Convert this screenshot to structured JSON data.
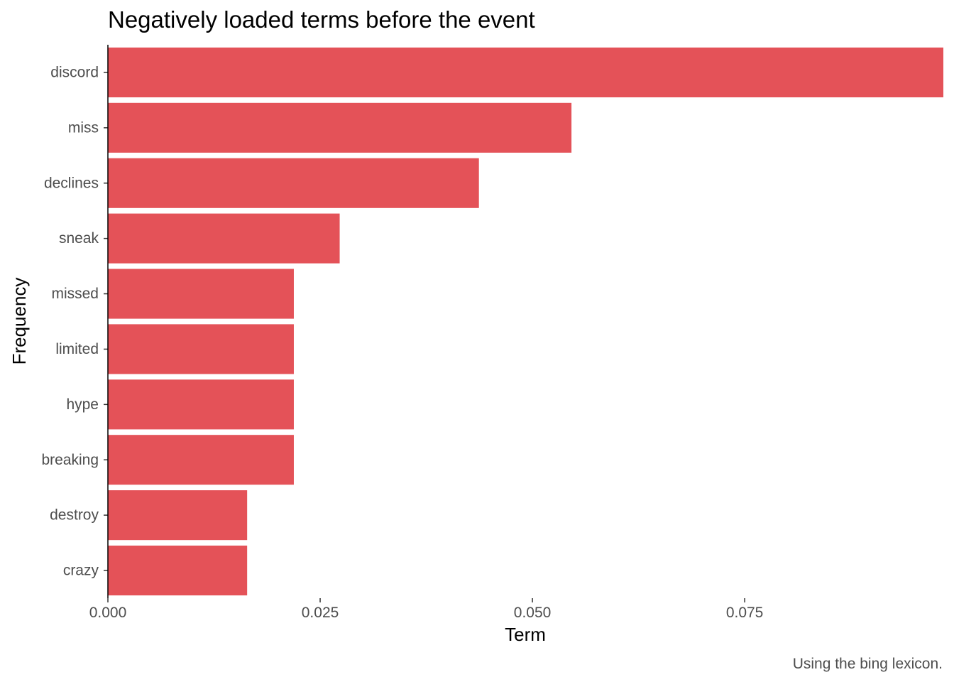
{
  "chart_data": {
    "type": "bar",
    "orientation": "horizontal",
    "title": "Negatively loaded terms before the event",
    "xlabel": "Term",
    "ylabel": "Frequency",
    "caption": "Using the bing lexicon.",
    "categories": [
      "discord",
      "miss",
      "declines",
      "sneak",
      "missed",
      "limited",
      "hype",
      "breaking",
      "destroy",
      "crazy"
    ],
    "values": [
      0.0984,
      0.0546,
      0.0437,
      0.0273,
      0.0219,
      0.0219,
      0.0219,
      0.0219,
      0.0164,
      0.0164
    ],
    "xlim": [
      0,
      0.0984
    ],
    "x_ticks": [
      0.0,
      0.025,
      0.05,
      0.075
    ],
    "x_tick_labels": [
      "0.000",
      "0.025",
      "0.050",
      "0.075"
    ],
    "bar_color": "#e45258",
    "grid": false,
    "legend": "none"
  }
}
